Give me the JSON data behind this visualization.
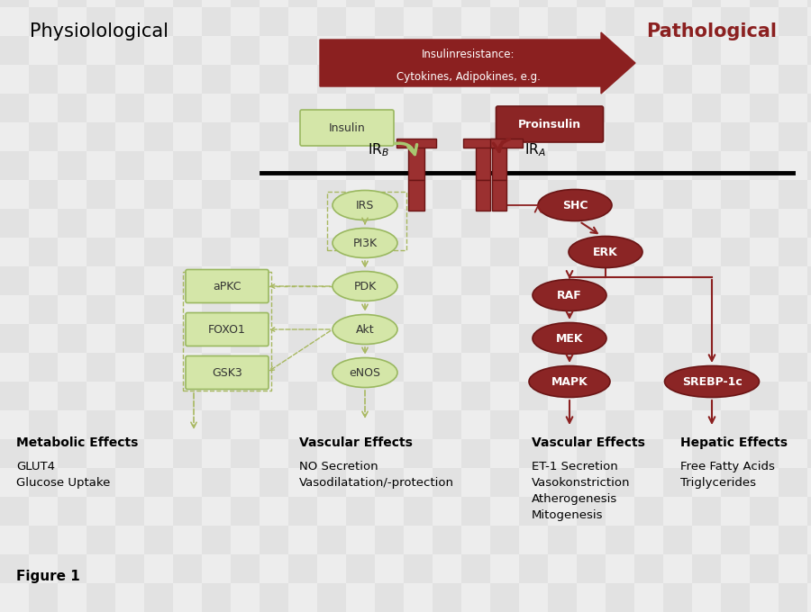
{
  "bg_checker_light": "#d8d8d8",
  "bg_checker_dark": "#c0c0c0",
  "green_fill": "#d4e6a8",
  "green_border": "#9ab860",
  "red_fill": "#8b2525",
  "red_border": "#6b1515",
  "red_text": "#8b2020",
  "dashed_green": "#a8b860",
  "arrow_green": "#a8c870",
  "title_physio": "Physiolological",
  "title_patho": "Pathological",
  "resistance_line1": "Insulinresistance:",
  "resistance_line2": "Cytokines, Adipokines, e.g.",
  "insulin_label": "Insulin",
  "proinsulin_label": "Proinsulin",
  "IRS_label": "IRS",
  "SHC_label": "SHC",
  "PI3K_label": "PI3K",
  "PDK_label": "PDK",
  "Akt_label": "Akt",
  "eNOS_label": "eNOS",
  "aPKC_label": "aPKC",
  "FOXO1_label": "FOXO1",
  "GSK3_label": "GSK3",
  "ERK_label": "ERK",
  "RAF_label": "RAF",
  "MEK_label": "MEK",
  "MAPK_label": "MAPK",
  "SREBP_label": "SREBP-1c",
  "metab_title": "Metabolic Effects",
  "metab_items": "GLUT4\nGlucose Uptake",
  "vasc1_title": "Vascular Effects",
  "vasc1_items": "NO Secretion\nVasodilatation/-protection",
  "vasc2_title": "Vascular Effects",
  "vasc2_items": "ET-1 Secretion\nVasokonstriction\nAtherogenesis\nMitogenesis",
  "hepatic_title": "Hepatic Effects",
  "hepatic_items": "Free Fatty Acids\nTriglycerides",
  "figure_label": "Figure 1"
}
